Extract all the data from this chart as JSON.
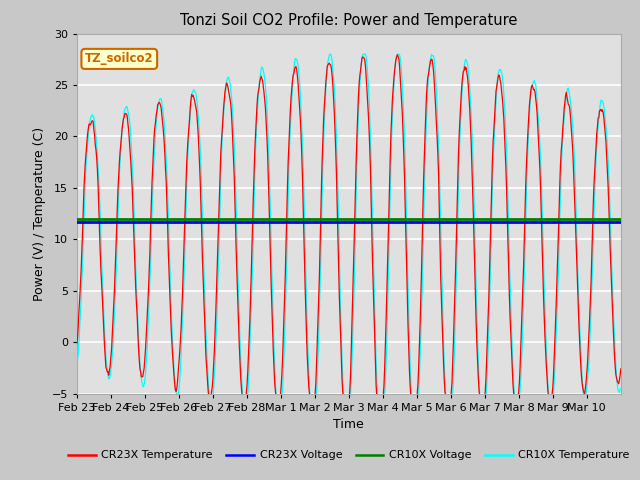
{
  "title": "Tonzi Soil CO2 Profile: Power and Temperature",
  "ylabel": "Power (V) / Temperature (C)",
  "xlabel": "Time",
  "ylim": [
    -5,
    30
  ],
  "fig_facecolor": "#c8c8c8",
  "plot_bg_color": "#e0e0e0",
  "annotation_text": "TZ_soilco2",
  "annotation_color": "#cc6600",
  "annotation_bg": "#ffffcc",
  "cr23x_voltage_value": 11.7,
  "cr10x_voltage_value": 11.95,
  "x_tick_labels": [
    "Feb 23",
    "Feb 24",
    "Feb 25",
    "Feb 26",
    "Feb 27",
    "Feb 28",
    "Mar 1",
    "Mar 2",
    "Mar 3",
    "Mar 4",
    "Mar 5",
    "Mar 6",
    "Mar 7",
    "Mar 8",
    "Mar 9",
    "Mar 10"
  ],
  "legend_entries": [
    {
      "label": "CR23X Temperature",
      "color": "red",
      "style": "-"
    },
    {
      "label": "CR23X Voltage",
      "color": "blue",
      "style": "-"
    },
    {
      "label": "CR10X Voltage",
      "color": "green",
      "style": "-"
    },
    {
      "label": "CR10X Temperature",
      "color": "cyan",
      "style": "-"
    }
  ],
  "yticks": [
    -5,
    0,
    5,
    10,
    15,
    20,
    25,
    30
  ],
  "num_days": 16
}
